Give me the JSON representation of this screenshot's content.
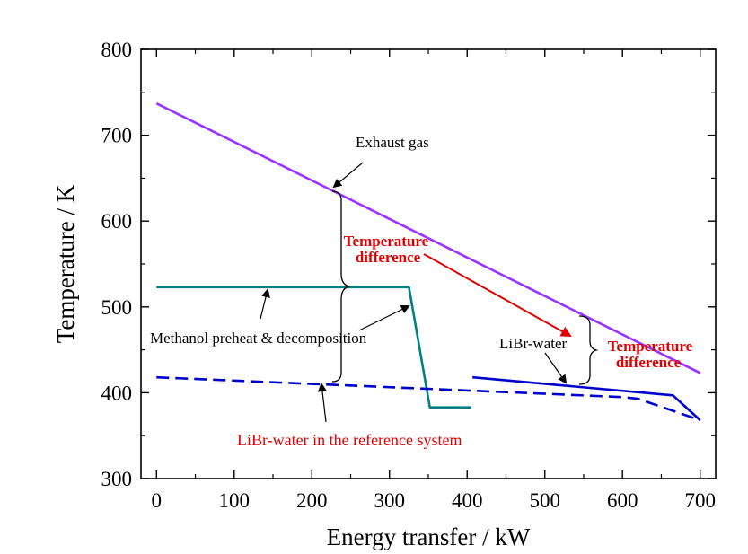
{
  "chart_data": {
    "type": "line",
    "xlabel": "Energy transfer / kW",
    "ylabel": "Temperature / K",
    "xlim": [
      -20,
      720
    ],
    "ylim": [
      300,
      800
    ],
    "xticks": [
      0,
      100,
      200,
      300,
      400,
      500,
      600,
      700
    ],
    "yticks": [
      300,
      400,
      500,
      600,
      700,
      800
    ],
    "grid": false,
    "legend": "none",
    "series": [
      {
        "color": "#9933ff",
        "style": "solid",
        "x": [
          0,
          700
        ],
        "y": [
          737,
          423
        ]
      },
      {
        "color": "#008080",
        "style": "solid",
        "x": [
          0,
          325,
          352,
          405
        ],
        "y": [
          523,
          523,
          383,
          383
        ]
      },
      {
        "color": "#0000cc",
        "style": "solid",
        "x": [
          407,
          665,
          700
        ],
        "y": [
          418,
          397,
          368
        ]
      },
      {
        "color": "#0000cc",
        "style": "dashed",
        "x": [
          0,
          600,
          620,
          700
        ],
        "y": [
          418,
          395,
          393,
          368
        ]
      }
    ],
    "annotations": [
      {
        "text": "Exhaust gas",
        "color": "#000000"
      },
      {
        "text": "Temperature difference",
        "lines": [
          "Temperature",
          "difference"
        ],
        "color": "#e00000"
      },
      {
        "text": "Temperature difference",
        "lines": [
          "Temperature",
          "difference"
        ],
        "color": "#e00000"
      },
      {
        "text": "Methanol preheat & decomposition",
        "color": "#000000"
      },
      {
        "text": "LiBr-water",
        "color": "#000000"
      },
      {
        "text": "LiBr-water in the reference system",
        "color": "#e00000"
      }
    ]
  }
}
